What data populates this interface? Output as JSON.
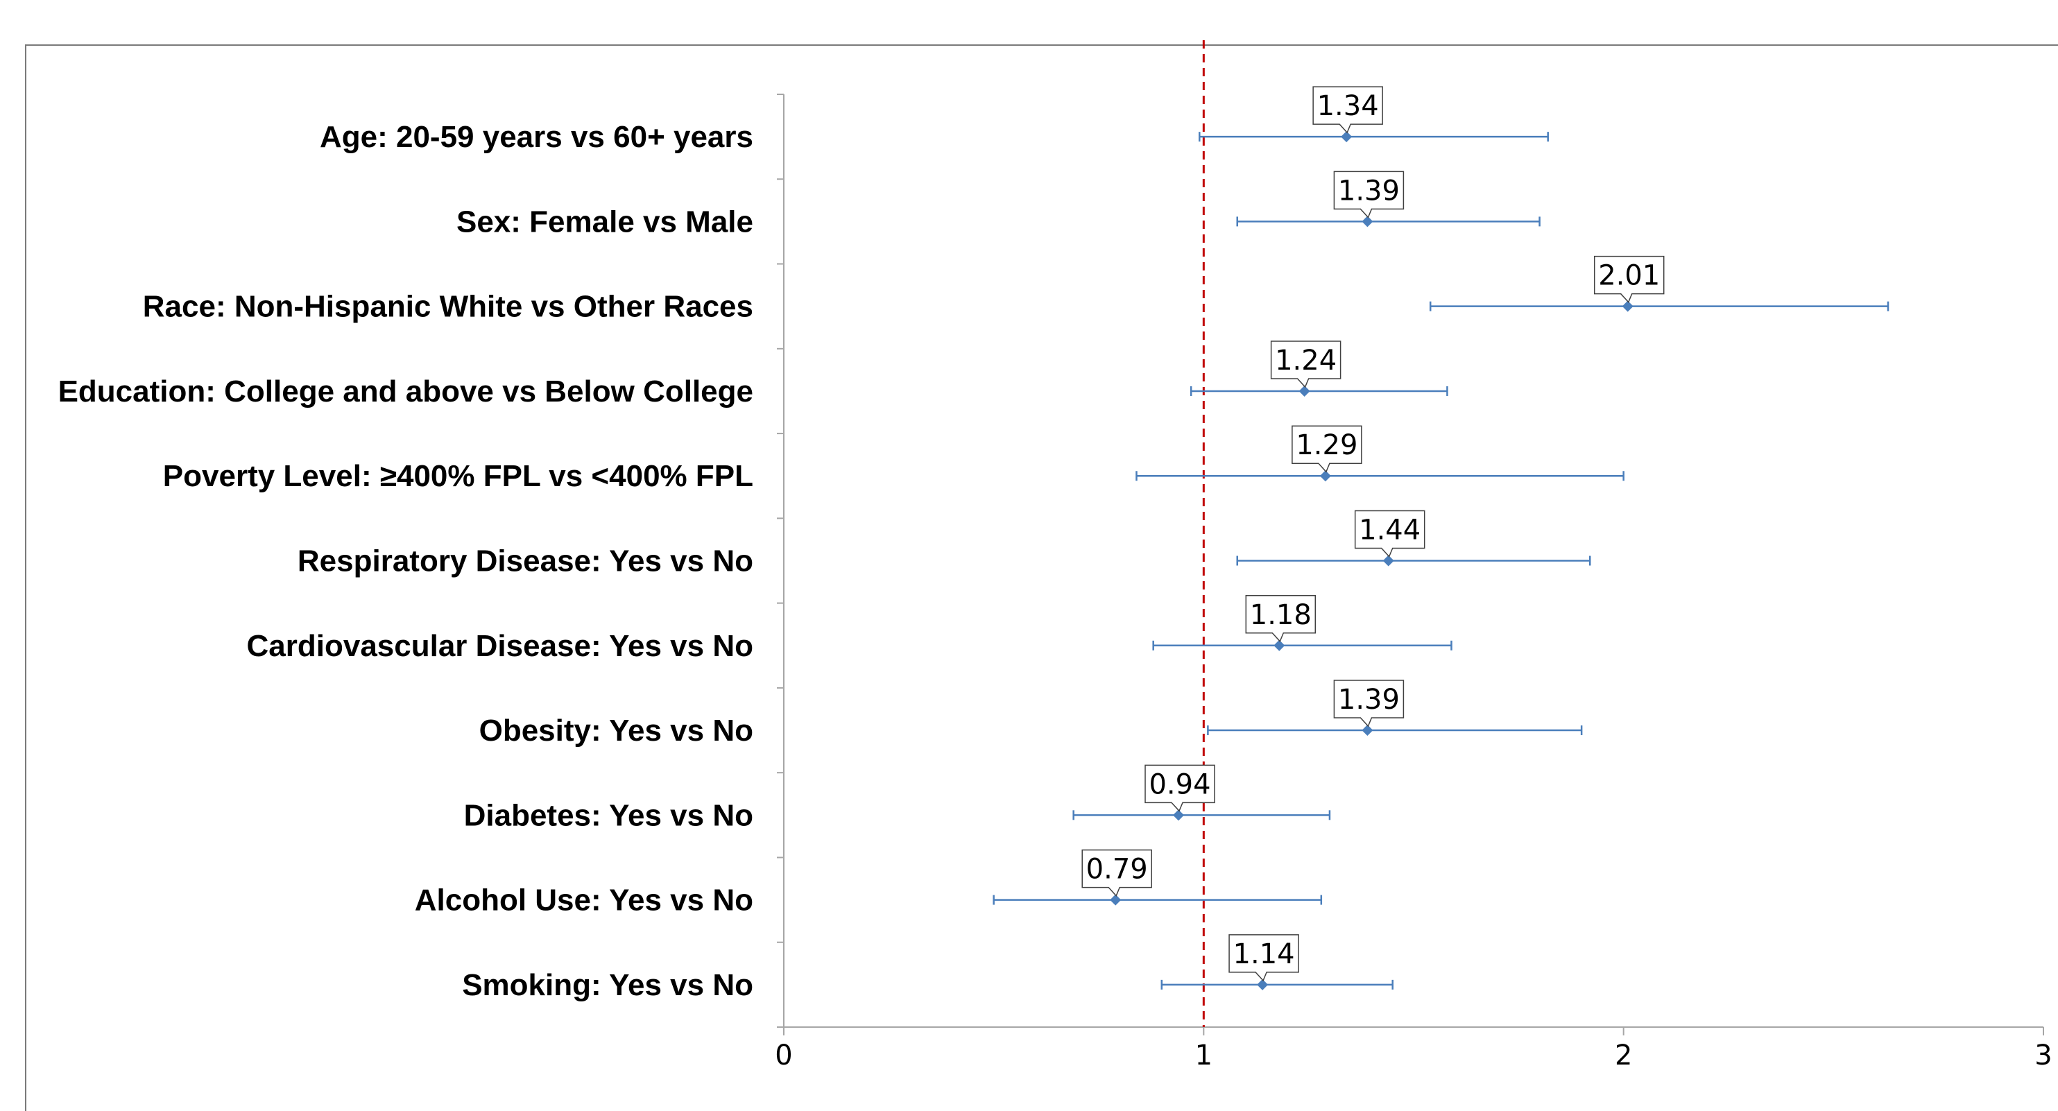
{
  "chart_data": {
    "type": "scatter",
    "subtype": "forest-plot-with-error-bars",
    "title": "",
    "xlabel": "",
    "ylabel": "",
    "xlim": [
      0,
      3
    ],
    "x_ticks": [
      "0",
      "1",
      "2",
      "3"
    ],
    "reference_line": {
      "x": 1,
      "style": "dashed",
      "color": "#c00000"
    },
    "grid": false,
    "legend": "none",
    "colors": {
      "series": "#4a7ebb",
      "reference": "#c00000",
      "axis": "#a6a6a6",
      "label_border": "#404040"
    },
    "categories": [
      "Age: 20-59 years vs 60+ years",
      "Sex: Female vs Male",
      "Race: Non-Hispanic White vs Other Races",
      "Education: College and above vs Below College",
      "Poverty Level: ≥400% FPL vs <400% FPL",
      "Respiratory Disease: Yes vs No",
      "Cardiovascular Disease: Yes vs No",
      "Obesity: Yes vs No",
      "Diabetes: Yes vs No",
      "Alcohol Use: Yes vs No",
      "Smoking: Yes vs No"
    ],
    "series": [
      {
        "estimate": [
          1.34,
          1.39,
          2.01,
          1.24,
          1.29,
          1.44,
          1.18,
          1.39,
          0.94,
          0.79,
          1.14
        ],
        "lower": [
          0.99,
          1.08,
          1.54,
          0.97,
          0.84,
          1.08,
          0.88,
          1.01,
          0.69,
          0.5,
          0.9
        ],
        "upper": [
          1.82,
          1.8,
          2.63,
          1.58,
          2.0,
          1.92,
          1.59,
          1.9,
          1.3,
          1.28,
          1.45
        ],
        "data_labels": [
          "1.34",
          "1.39",
          "2.01",
          "1.24",
          "1.29",
          "1.44",
          "1.18",
          "1.39",
          "0.94",
          "0.79",
          "1.14"
        ]
      }
    ]
  }
}
